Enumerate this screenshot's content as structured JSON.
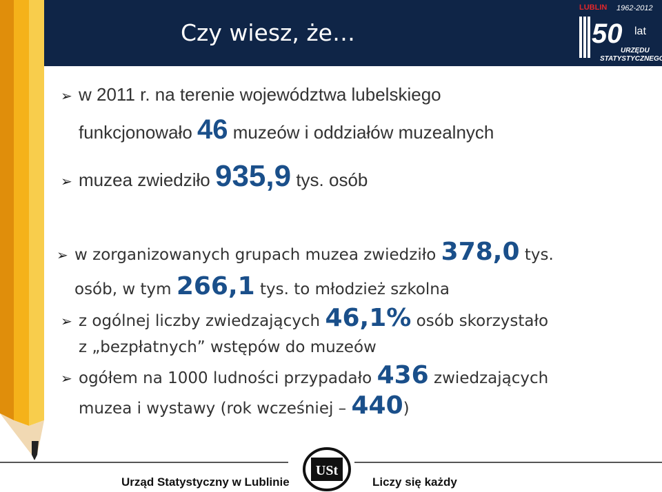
{
  "header": {
    "title": "Czy wiesz, że…",
    "logo": {
      "top": "LUBLIN",
      "years": "1962-2012",
      "number": "50",
      "suffix": "lat",
      "line1": "URZĘDU",
      "line2": "STATYSTYCZNEGO"
    }
  },
  "bullets": {
    "b1": {
      "t1": "w 2011 r. na terenie województwa lubelskiego",
      "t2": "funkcjonowało",
      "big": "46",
      "t3": "muzeów i oddziałów muzealnych"
    },
    "b2": {
      "t1": "muzea zwiedziło",
      "big": "935,9",
      "t2": "tys. osób"
    },
    "b3": {
      "t1": "w zorganizowanych grupach muzea zwiedziło",
      "big1": "378,0",
      "t2": "tys.",
      "t3": "osób, w tym",
      "big2": "266,1",
      "t4": "tys. to młodzież szkolna"
    },
    "b4": {
      "t1": "z ogólnej liczby zwiedzających",
      "big": "46,1%",
      "t2": "osób skorzystało",
      "t3": "z „bezpłatnych” wstępów do muzeów"
    },
    "b5": {
      "t1": "ogółem na 1000 ludności przypadało",
      "big1": "436",
      "t2": "zwiedzających",
      "t3": "muzea i wystawy (rok wcześniej",
      "dash": "–",
      "big2": "440",
      "t4": ")"
    }
  },
  "footer": {
    "left": "Urząd Statystyczny w Lublinie",
    "right": "Liczy się każdy",
    "logo_text": "USt"
  },
  "colors": {
    "header_bg": "#0f2547",
    "accent_number": "#1a4f8a",
    "pencil_yellow": "#f5b21a"
  }
}
